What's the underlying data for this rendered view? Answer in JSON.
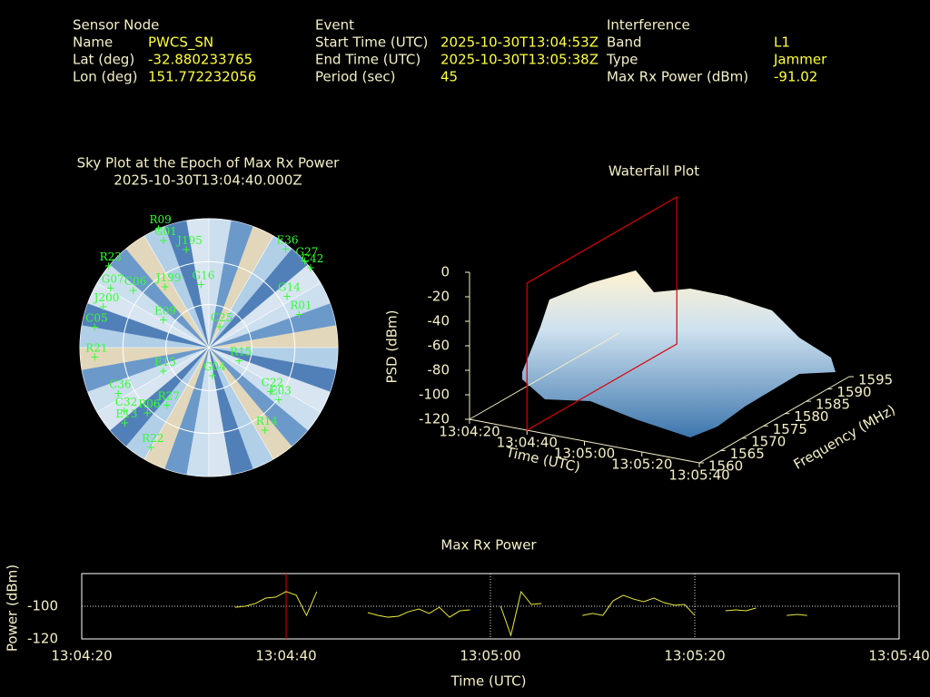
{
  "header": {
    "sensor_node": {
      "title": "Sensor Node",
      "fields": [
        {
          "label": "Name",
          "value": "PWCS_SN"
        },
        {
          "label": "Lat (deg)",
          "value": "-32.880233765"
        },
        {
          "label": "Lon (deg)",
          "value": "151.772232056"
        }
      ]
    },
    "event": {
      "title": "Event",
      "fields": [
        {
          "label": "Start Time (UTC)",
          "value": "2025-10-30T13:04:53Z"
        },
        {
          "label": "End Time (UTC)",
          "value": "2025-10-30T13:05:38Z"
        },
        {
          "label": "Period (sec)",
          "value": "45"
        }
      ]
    },
    "interference": {
      "title": "Interference",
      "fields": [
        {
          "label": "Band",
          "value": "L1"
        },
        {
          "label": "Type",
          "value": "Jammer"
        },
        {
          "label": "Max Rx Power (dBm)",
          "value": "-91.02"
        }
      ]
    }
  },
  "chart_data": [
    {
      "type": "polar",
      "title": "Sky Plot at the Epoch of Max Rx Power",
      "subtitle": "2025-10-30T13:04:40.000Z",
      "color": "#33ff33",
      "rgrid": [
        30,
        60
      ],
      "points": [
        {
          "label": "R09",
          "az": 337,
          "el": 0
        },
        {
          "label": "G01",
          "az": 337,
          "el": 9
        },
        {
          "label": "J195",
          "az": 347,
          "el": 20
        },
        {
          "label": "E36",
          "az": 38,
          "el": 3
        },
        {
          "label": "G27",
          "az": 48,
          "el": 0
        },
        {
          "label": "C42",
          "az": 52,
          "el": 0
        },
        {
          "label": "R23",
          "az": 309,
          "el": 0
        },
        {
          "label": "G07",
          "az": 301,
          "el": 10
        },
        {
          "label": "C06",
          "az": 307,
          "el": 24
        },
        {
          "label": "J199",
          "az": 324,
          "el": 38
        },
        {
          "label": "G16",
          "az": 353,
          "el": 46
        },
        {
          "label": "G14",
          "az": 57,
          "el": 25
        },
        {
          "label": "J200",
          "az": 291,
          "el": 11
        },
        {
          "label": "C05",
          "az": 280,
          "el": 9
        },
        {
          "label": "R01",
          "az": 70,
          "el": 23
        },
        {
          "label": "E09",
          "az": 301,
          "el": 53
        },
        {
          "label": "C25",
          "az": 28,
          "el": 74
        },
        {
          "label": "R21",
          "az": 265,
          "el": 10
        },
        {
          "label": "E15",
          "az": 242,
          "el": 54
        },
        {
          "label": "R15",
          "az": 114,
          "el": 67
        },
        {
          "label": "G04",
          "az": 173,
          "el": 70
        },
        {
          "label": "C36",
          "az": 243,
          "el": 19
        },
        {
          "label": "C22",
          "az": 126,
          "el": 37
        },
        {
          "label": "E03",
          "az": 127,
          "el": 29
        },
        {
          "label": "R27",
          "az": 216,
          "el": 40
        },
        {
          "label": "R06",
          "az": 223,
          "el": 27
        },
        {
          "label": "C32",
          "az": 233,
          "el": 16
        },
        {
          "label": "E13",
          "az": 228,
          "el": 11
        },
        {
          "label": "R14",
          "az": 146,
          "el": 20
        },
        {
          "label": "R22",
          "az": 210,
          "el": 9
        }
      ]
    },
    {
      "type": "surface",
      "title": "Waterfall Plot",
      "zlabel": "PSD (dBm)",
      "xlabel": "Time (UTC)",
      "ylabel": "Frequency (MHz)",
      "xlim": [
        0,
        80
      ],
      "xticks": [
        {
          "value": 0,
          "label": "13:04:20"
        },
        {
          "value": 20,
          "label": "13:04:40"
        },
        {
          "value": 40,
          "label": "13:05:00"
        },
        {
          "value": 60,
          "label": "13:05:20"
        },
        {
          "value": 80,
          "label": "13:05:40"
        }
      ],
      "ylim": [
        1560,
        1595
      ],
      "yticks": [
        1560,
        1565,
        1570,
        1575,
        1580,
        1585,
        1590,
        1595
      ],
      "zlim": [
        -120,
        0
      ],
      "zticks": [
        0,
        -20,
        -40,
        -60,
        -80,
        -100,
        -120
      ],
      "epoch_marker": 20,
      "marker_color": "#dd0000"
    },
    {
      "type": "line",
      "title": "Max Rx Power",
      "xlabel": "Time (UTC)",
      "ylabel": "Power (dBm)",
      "xlim": [
        0,
        80
      ],
      "xticks": [
        {
          "value": 0,
          "label": "13:04:20"
        },
        {
          "value": 20,
          "label": "13:04:40"
        },
        {
          "value": 40,
          "label": "13:05:00"
        },
        {
          "value": 60,
          "label": "13:05:20"
        },
        {
          "value": 80,
          "label": "13:05:40"
        }
      ],
      "ylim": [
        -120,
        -80
      ],
      "yticks": [
        -120,
        -100
      ],
      "grid": true,
      "epoch_marker": 20,
      "marker_color": "#dd0000",
      "x": [
        15,
        16,
        17,
        18,
        19,
        20,
        21,
        22,
        23,
        25,
        28,
        29,
        30,
        31,
        32,
        33,
        34,
        35,
        36,
        37,
        38,
        40,
        41,
        42,
        43,
        44,
        45,
        47,
        49,
        50,
        51,
        52,
        53,
        54,
        55,
        56,
        57,
        58,
        59,
        60,
        62,
        63,
        64,
        65,
        66,
        68,
        69,
        70,
        71
      ],
      "series": [
        {
          "name": "Max Rx Power",
          "color": "#e8e840",
          "values": [
            -100.6,
            -100,
            -98.3,
            -95,
            -94.4,
            -91.02,
            -93.3,
            -105.6,
            -91.1,
            null,
            -103.9,
            -105.6,
            -106.7,
            -106.1,
            -103.3,
            -101.7,
            -104.4,
            -100.6,
            -106.7,
            -102.8,
            -102.2,
            null,
            -100,
            -117.8,
            -91.1,
            -98.9,
            -98.3,
            null,
            -105.6,
            -104.4,
            -105.6,
            -96.7,
            -93.3,
            -95.6,
            -97.2,
            -95,
            -97.8,
            -99.4,
            -98.9,
            -105.6,
            null,
            -102.8,
            -102.2,
            -102.8,
            -101.1,
            null,
            -105.6,
            -105,
            -105.6
          ]
        }
      ]
    }
  ]
}
